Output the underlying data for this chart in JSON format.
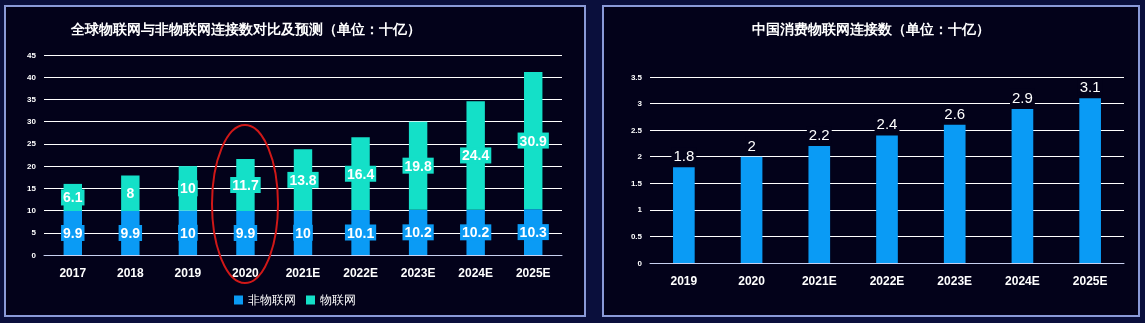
{
  "chart_data": [
    {
      "type": "bar",
      "title": "全球物联网与非物联网连接数对比及预测（单位：十亿）",
      "categories": [
        "2017",
        "2018",
        "2019",
        "2020",
        "2021E",
        "2022E",
        "2023E",
        "2024E",
        "2025E"
      ],
      "stacked": true,
      "series": [
        {
          "name": "非物联网",
          "color": "#0a9bf5",
          "values": [
            9.9,
            9.9,
            10,
            9.9,
            10,
            10.1,
            10.2,
            10.2,
            10.3
          ]
        },
        {
          "name": "物联网",
          "color": "#14e0c8",
          "values": [
            6.1,
            8,
            10,
            11.7,
            13.8,
            16.4,
            19.8,
            24.4,
            30.9
          ]
        }
      ],
      "ylim": [
        0,
        45
      ],
      "yticks": [
        0,
        5,
        10,
        15,
        20,
        25,
        30,
        35,
        40,
        45
      ],
      "grid": "y",
      "legend": "bottom",
      "data_labels": true
    },
    {
      "type": "bar",
      "title": "中国消费物联网连接数（单位：十亿）",
      "categories": [
        "2019",
        "2020",
        "2021E",
        "2022E",
        "2023E",
        "2024E",
        "2025E"
      ],
      "values": [
        1.8,
        2,
        2.2,
        2.4,
        2.6,
        2.9,
        3.1
      ],
      "color": "#0a9bf5",
      "ylim": [
        0,
        3.5
      ],
      "yticks": [
        0,
        0.5,
        1,
        1.5,
        2,
        2.5,
        3,
        3.5
      ],
      "grid": "y",
      "data_labels": true
    }
  ]
}
